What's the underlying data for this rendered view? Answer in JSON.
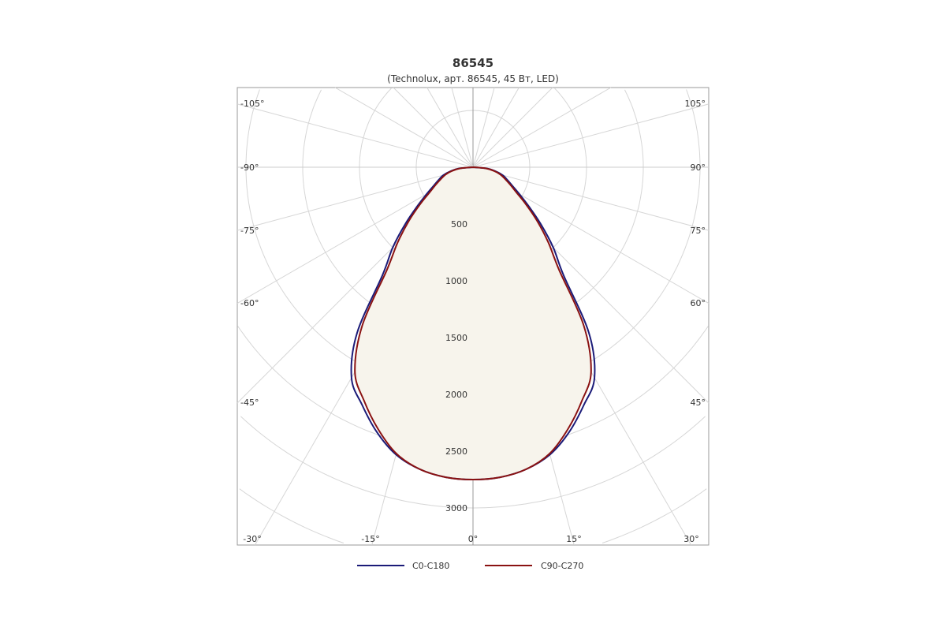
{
  "chart_data": {
    "type": "polar",
    "title": "86545",
    "subtitle": "(Technolux, арт. 86545, 45 Вт, LED)",
    "radial_ticks": [
      500,
      1000,
      1500,
      2000,
      2500,
      3000
    ],
    "angle_labels": {
      "left": [
        "-105°",
        "-90°",
        "-75°",
        "-60°",
        "-45°"
      ],
      "bottom": [
        "-30°",
        "-15°",
        "0°",
        "15°",
        "30°"
      ],
      "right": [
        "105°",
        "90°",
        "75°",
        "60°",
        "45°"
      ]
    },
    "angles": [
      0,
      5,
      10,
      15,
      20,
      25,
      30,
      35,
      40,
      45,
      50,
      55,
      60,
      65,
      70,
      75,
      80,
      85,
      90
    ],
    "series": [
      {
        "name": "C0-C180",
        "color": "#1b1b78",
        "values": [
          2750,
          2740,
          2700,
          2620,
          2480,
          2310,
          2140,
          1780,
          1240,
          1000,
          780,
          600,
          470,
          380,
          320,
          270,
          200,
          120,
          0
        ]
      },
      {
        "name": "C90-C270",
        "color": "#8a1212",
        "values": [
          2750,
          2740,
          2700,
          2610,
          2450,
          2270,
          2080,
          1700,
          1180,
          940,
          740,
          570,
          440,
          360,
          300,
          250,
          190,
          110,
          0
        ]
      }
    ],
    "fill_color": "#f7f4ec",
    "grid": true,
    "legend": "bottom"
  }
}
